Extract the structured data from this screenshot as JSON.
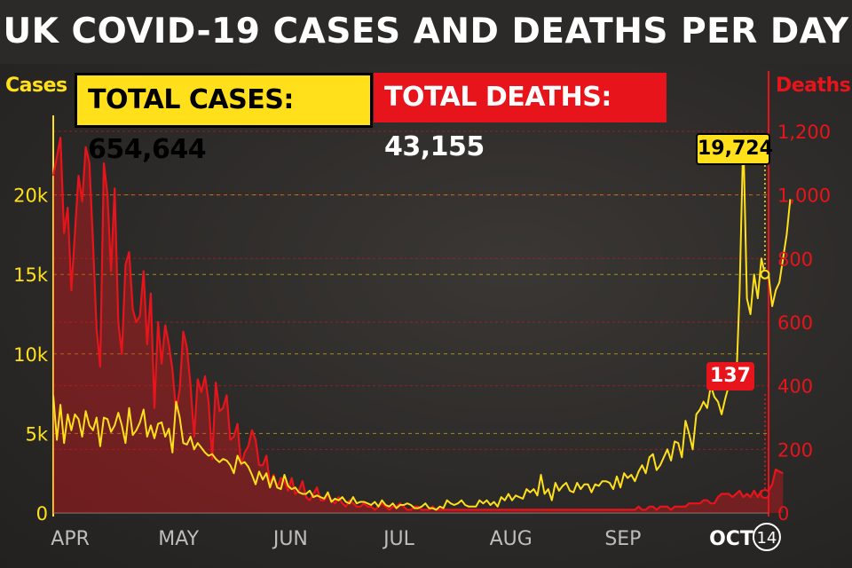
{
  "title": "UK COVID-19 CASES AND DEATHS PER DAY",
  "totals": {
    "cases_label": "TOTAL CASES: 654,644",
    "deaths_label": "TOTAL DEATHS: 43,155"
  },
  "colors": {
    "cases": "#ffe01a",
    "deaths": "#e8141b",
    "background": "#2a2826"
  },
  "chart_data": {
    "type": "line",
    "ylabel": "Cases",
    "y2label": "Deaths",
    "ylim": [
      0,
      25000
    ],
    "y2lim": [
      0,
      1250
    ],
    "yticks": [
      {
        "value": 0,
        "label": "0"
      },
      {
        "value": 5000,
        "label": "5k"
      },
      {
        "value": 10000,
        "label": "10k"
      },
      {
        "value": 15000,
        "label": "15k"
      },
      {
        "value": 20000,
        "label": "20k"
      }
    ],
    "y2ticks": [
      {
        "value": 0,
        "label": "0"
      },
      {
        "value": 200,
        "label": "200"
      },
      {
        "value": 400,
        "label": "400"
      },
      {
        "value": 600,
        "label": "600"
      },
      {
        "value": 800,
        "label": "800"
      },
      {
        "value": 1000,
        "label": "1,000"
      },
      {
        "value": 1200,
        "label": "1,200"
      }
    ],
    "xticks": [
      "APR",
      "MAY",
      "JUN",
      "JUL",
      "AUG",
      "SEP",
      "OCT",
      "14"
    ],
    "xtick_positions": [
      1,
      31,
      62,
      92,
      123,
      154,
      184,
      197
    ],
    "x_range": [
      0,
      198
    ],
    "grid": true,
    "series": [
      {
        "name": "Cases",
        "axis": "left",
        "values": [
          7400,
          4600,
          6800,
          4400,
          6200,
          5200,
          6200,
          5900,
          4800,
          6400,
          5500,
          5200,
          6000,
          4200,
          6000,
          5900,
          5100,
          5500,
          6300,
          5500,
          4400,
          6600,
          4900,
          5200,
          5700,
          6500,
          4800,
          5500,
          4700,
          5600,
          5700,
          4800,
          5300,
          3800,
          7000,
          6000,
          4400,
          4300,
          4800,
          4000,
          4400,
          4100,
          3800,
          3600,
          3700,
          3400,
          3200,
          3400,
          3300,
          3000,
          2500,
          3600,
          3100,
          3200,
          2900,
          2400,
          1800,
          2600,
          2100,
          2500,
          1600,
          2300,
          1600,
          1500,
          2400,
          1700,
          1500,
          1600,
          1300,
          1200,
          1200,
          1400,
          1000,
          1100,
          1000,
          900,
          1300,
          700,
          900,
          800,
          1000,
          700,
          600,
          1000,
          600,
          700,
          700,
          600,
          500,
          700,
          400,
          800,
          500,
          400,
          600,
          300,
          500,
          500,
          600,
          500,
          300,
          300,
          400,
          600,
          300,
          300,
          200,
          400,
          300,
          800,
          600,
          500,
          600,
          800,
          500,
          400,
          400,
          400,
          800,
          600,
          800,
          500,
          700,
          400,
          1000,
          800,
          1200,
          800,
          1100,
          1000,
          900,
          1500,
          1300,
          1500,
          1100,
          2400,
          1200,
          1500,
          800,
          1900,
          1400,
          1700,
          1900,
          1400,
          1300,
          1900,
          1500,
          1800,
          1800,
          1300,
          1800,
          1700,
          2000,
          2000,
          1900,
          1500,
          2300,
          1600,
          2500,
          2200,
          2400,
          2000,
          2600,
          3000,
          2500,
          3500,
          3700,
          2700,
          3000,
          3500,
          4000,
          3300,
          4500,
          4400,
          3500,
          5800,
          5000,
          4000,
          6200,
          6500,
          7000,
          6600,
          8000,
          7300,
          7000,
          6200,
          7200,
          8000,
          8100,
          7900,
          14000,
          23700,
          13500,
          12500,
          15000,
          13500,
          16000,
          15000,
          15000,
          13000,
          14000,
          14500,
          16000,
          17500,
          19724
        ]
      },
      {
        "name": "Deaths",
        "axis": "right",
        "values": [
          1060,
          1120,
          1180,
          880,
          960,
          700,
          880,
          1060,
          980,
          1150,
          1100,
          850,
          580,
          460,
          1100,
          1000,
          760,
          1020,
          600,
          500,
          780,
          820,
          640,
          600,
          620,
          760,
          530,
          690,
          330,
          600,
          470,
          590,
          530,
          450,
          320,
          390,
          570,
          520,
          400,
          240,
          420,
          380,
          430,
          350,
          170,
          410,
          320,
          330,
          370,
          230,
          240,
          280,
          150,
          190,
          210,
          260,
          230,
          150,
          150,
          180,
          90,
          120,
          80,
          110,
          100,
          70,
          110,
          60,
          70,
          100,
          50,
          40,
          60,
          80,
          40,
          40,
          60,
          40,
          30,
          50,
          30,
          20,
          40,
          30,
          20,
          20,
          30,
          20,
          20,
          10,
          20,
          30,
          20,
          10,
          20,
          20,
          30,
          20,
          10,
          10,
          20,
          20,
          10,
          10,
          10,
          20,
          10,
          10,
          10,
          10,
          10,
          10,
          10,
          10,
          10,
          10,
          10,
          10,
          10,
          10,
          10,
          10,
          10,
          10,
          10,
          10,
          10,
          10,
          10,
          10,
          10,
          10,
          10,
          10,
          10,
          10,
          10,
          10,
          10,
          10,
          10,
          10,
          10,
          10,
          10,
          10,
          10,
          10,
          10,
          10,
          10,
          10,
          10,
          10,
          10,
          10,
          10,
          10,
          10,
          10,
          10,
          10,
          20,
          10,
          10,
          20,
          20,
          10,
          20,
          20,
          20,
          10,
          20,
          20,
          20,
          20,
          30,
          30,
          30,
          30,
          40,
          40,
          30,
          30,
          50,
          60,
          60,
          60,
          50,
          60,
          70,
          50,
          60,
          50,
          70,
          50,
          70,
          60,
          70,
          90,
          137,
          130,
          125
        ]
      }
    ],
    "annotations": [
      {
        "series": "Cases",
        "index": 197,
        "label": "19,724"
      },
      {
        "series": "Deaths",
        "index": 197,
        "label": "137"
      }
    ]
  }
}
